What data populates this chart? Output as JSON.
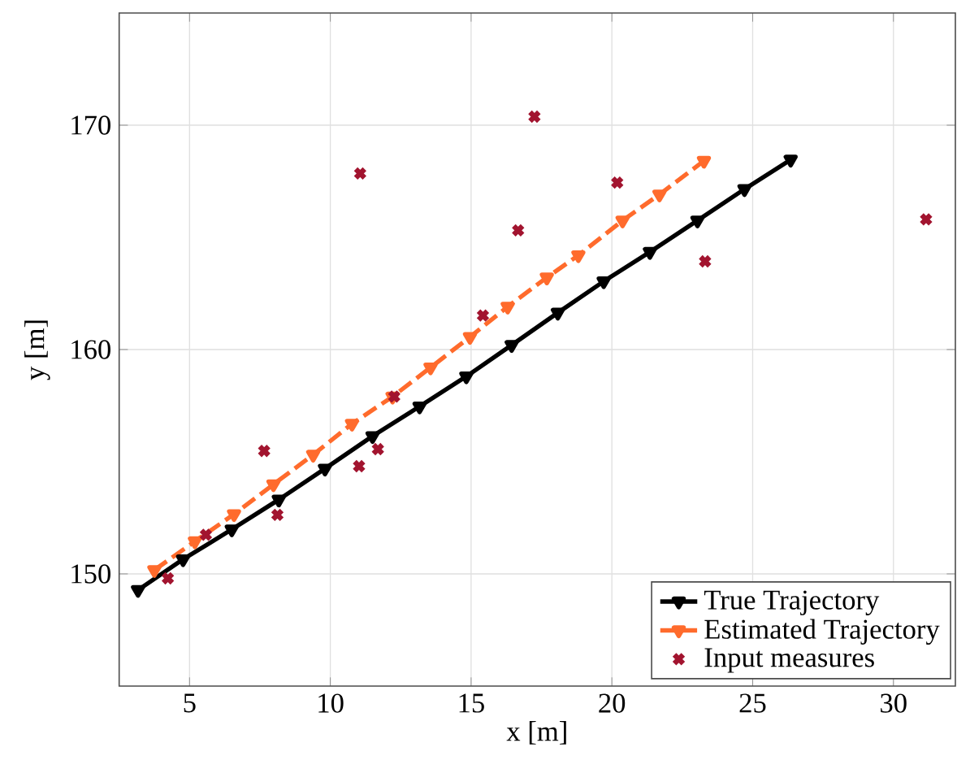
{
  "chart_data": {
    "type": "line",
    "xlabel": "x [m]",
    "ylabel": "y [m]",
    "xlim": [
      2.5,
      32.2
    ],
    "ylim": [
      145,
      175
    ],
    "xticks": [
      5,
      10,
      15,
      20,
      25,
      30
    ],
    "yticks": [
      150,
      160,
      170
    ],
    "grid": true,
    "legend": "bottom right",
    "series": [
      {
        "name": "True Trajectory",
        "color": "#000000",
        "marker": "triangle",
        "line_style": "solid",
        "x": [
          3.17,
          4.77,
          6.5,
          8.17,
          9.81,
          11.5,
          13.17,
          14.83,
          16.44,
          18.08,
          19.71,
          21.35,
          23.04,
          24.71,
          26.35
        ],
        "values": [
          149.28,
          150.65,
          151.98,
          153.31,
          154.69,
          156.14,
          157.46,
          158.8,
          160.2,
          161.64,
          163.04,
          164.35,
          165.75,
          167.15,
          168.46
        ]
      },
      {
        "name": "Estimated Trajectory",
        "color": "#ff6b2c",
        "marker": "triangle",
        "line_style": "dashed",
        "x": [
          3.75,
          5.19,
          6.58,
          7.98,
          9.39,
          10.77,
          12.21,
          13.56,
          14.96,
          16.3,
          17.69,
          18.81,
          20.38,
          21.69,
          23.27
        ],
        "values": [
          150.17,
          151.45,
          152.66,
          153.99,
          155.31,
          156.69,
          157.9,
          159.2,
          160.56,
          161.91,
          163.21,
          164.2,
          165.75,
          166.91,
          168.41
        ]
      },
      {
        "name": "Input measures",
        "type": "scatter",
        "color": "#a2142f",
        "marker": "cross",
        "x": [
          11.06,
          17.25,
          16.67,
          15.42,
          12.27,
          20.19,
          23.31,
          31.16,
          7.65,
          11.02,
          11.69,
          8.12,
          5.58,
          4.23
        ],
        "values": [
          167.85,
          170.38,
          165.31,
          161.52,
          157.9,
          167.44,
          163.93,
          165.8,
          155.48,
          154.8,
          155.56,
          152.63,
          151.74,
          149.8
        ]
      }
    ]
  }
}
